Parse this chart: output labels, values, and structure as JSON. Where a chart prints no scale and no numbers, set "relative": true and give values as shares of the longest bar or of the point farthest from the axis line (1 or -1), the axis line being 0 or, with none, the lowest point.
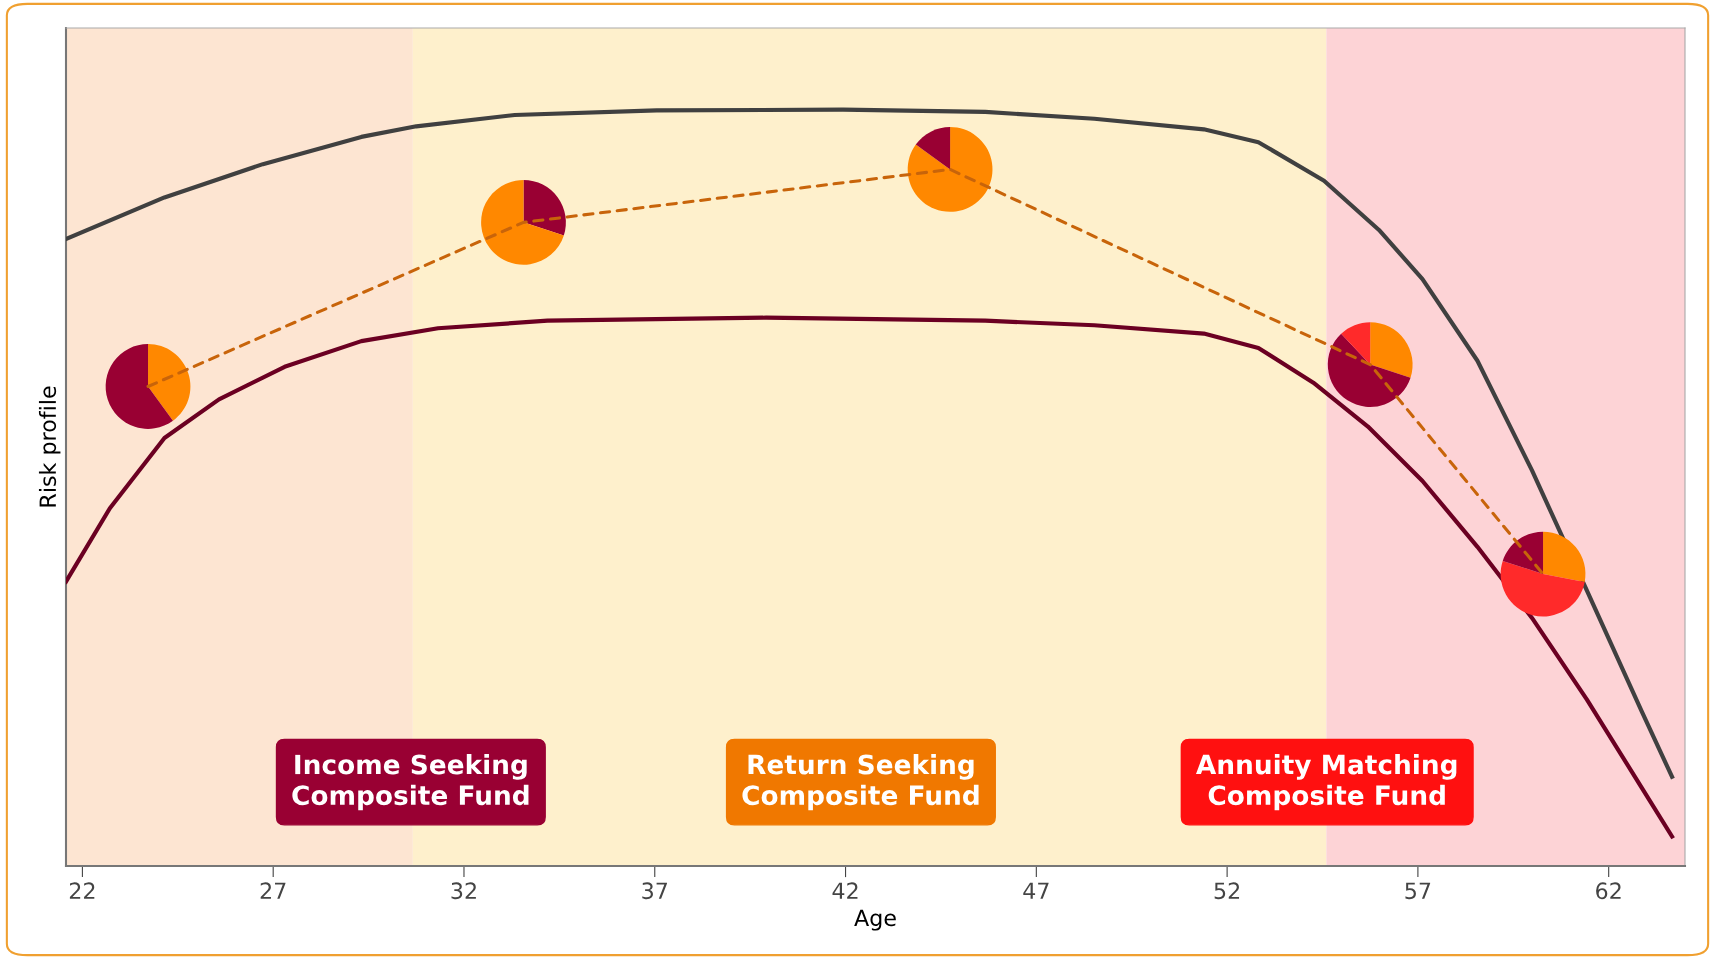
{
  "chart_data": [
    {
      "type": "line",
      "relative": true,
      "xlabel": "Age",
      "ylabel": "Risk profile",
      "xlim": [
        21.57,
        64.0
      ],
      "xticks": [
        22,
        27,
        32,
        37,
        42,
        47,
        52,
        57,
        62
      ],
      "grid": false,
      "legend": false,
      "series": [
        {
          "color": "#404040",
          "line_style": "solid",
          "x": [
            21.57,
            24.15,
            26.73,
            29.31,
            30.75,
            33.33,
            37.05,
            41.93,
            45.66,
            48.52,
            51.39,
            52.82,
            54.54,
            55.98,
            57.12,
            58.56,
            59.99,
            61.43,
            62.86,
            63.66
          ],
          "values": [
            0.829,
            0.884,
            0.928,
            0.964,
            0.978,
            0.993,
            0.999,
            1.0,
            0.997,
            0.988,
            0.974,
            0.957,
            0.906,
            0.841,
            0.776,
            0.668,
            0.523,
            0.364,
            0.205,
            0.118
          ]
        },
        {
          "color": "#6b0022",
          "line_style": "solid",
          "x": [
            21.57,
            22.72,
            24.15,
            25.58,
            27.3,
            29.31,
            31.32,
            34.19,
            39.92,
            45.66,
            48.52,
            51.39,
            52.82,
            54.26,
            55.69,
            57.12,
            58.56,
            59.99,
            61.43,
            62.86,
            63.66
          ],
          "values": [
            0.376,
            0.473,
            0.566,
            0.617,
            0.66,
            0.694,
            0.711,
            0.721,
            0.725,
            0.721,
            0.715,
            0.704,
            0.685,
            0.639,
            0.581,
            0.509,
            0.422,
            0.328,
            0.22,
            0.104,
            0.039
          ]
        },
        {
          "color": "#c8640a",
          "line_style": "dashed",
          "x": [
            23.72,
            33.56,
            44.74,
            55.75,
            60.28
          ],
          "values": [
            0.634,
            0.851,
            0.921,
            0.663,
            0.386
          ]
        }
      ],
      "bands": [
        {
          "axis": "x",
          "from": 21.57,
          "to": 30.66,
          "color": "#fde5d2",
          "label": "Income Seeking\nComposite Fund"
        },
        {
          "axis": "x",
          "from": 30.66,
          "to": 54.6,
          "color": "#fef0cc",
          "label": "Return Seeking\nComposite Fund"
        },
        {
          "axis": "x",
          "from": 54.6,
          "to": 64.0,
          "color": "#fdd3d6",
          "label": "Annuity Matching\nComposite Fund"
        }
      ]
    },
    {
      "type": "pie",
      "categories": [
        null,
        null
      ],
      "values": [
        40,
        60
      ],
      "colors": [
        "#ff8800",
        "#990033"
      ]
    },
    {
      "type": "pie",
      "categories": [
        null,
        null
      ],
      "values": [
        30,
        70
      ],
      "colors": [
        "#990033",
        "#ff8800"
      ]
    },
    {
      "type": "pie",
      "categories": [
        null,
        null
      ],
      "values": [
        85,
        15
      ],
      "colors": [
        "#ff8800",
        "#990033"
      ]
    },
    {
      "type": "pie",
      "categories": [
        null,
        null,
        null
      ],
      "values": [
        30,
        58,
        12
      ],
      "colors": [
        "#ff8800",
        "#990033",
        "#ff2a2a"
      ]
    },
    {
      "type": "pie",
      "categories": [
        null,
        null,
        null
      ],
      "values": [
        28,
        52,
        20
      ],
      "colors": [
        "#ff8800",
        "#ff2a2a",
        "#990033"
      ]
    }
  ]
}
